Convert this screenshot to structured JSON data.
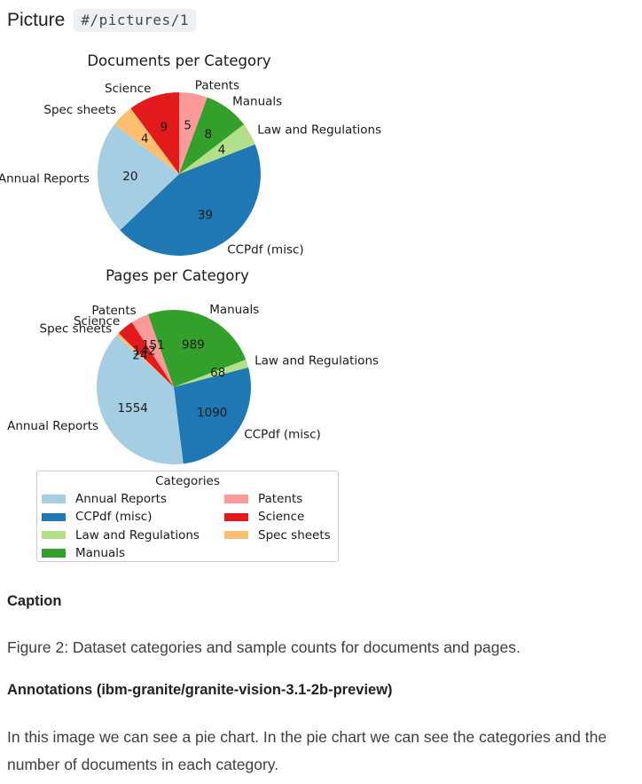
{
  "header": {
    "title": "Picture",
    "path_badge": "#/pictures/1"
  },
  "category_colors": {
    "Annual Reports": "#a6cee3",
    "CCPdf (misc)": "#1f78b4",
    "Law and Regulations": "#b2df8a",
    "Manuals": "#33a02c",
    "Patents": "#fb9a99",
    "Science": "#e31a1c",
    "Spec sheets": "#fdbf6f"
  },
  "chart_data": [
    {
      "type": "pie",
      "title": "Documents per Category",
      "start_angle_deg": 90,
      "direction": "clockwise",
      "legend_position": "below",
      "slices": [
        {
          "label": "Patents",
          "value": 5
        },
        {
          "label": "Manuals",
          "value": 8
        },
        {
          "label": "Law and Regulations",
          "value": 4
        },
        {
          "label": "CCPdf (misc)",
          "value": 39
        },
        {
          "label": "Annual Reports",
          "value": 20
        },
        {
          "label": "Spec sheets",
          "value": 4
        },
        {
          "label": "Science",
          "value": 9
        }
      ]
    },
    {
      "type": "pie",
      "title": "Pages per Category",
      "start_angle_deg": 123,
      "direction": "clockwise",
      "legend_position": "below",
      "slices": [
        {
          "label": "Patents",
          "value": 151
        },
        {
          "label": "Manuals",
          "value": 989
        },
        {
          "label": "Law and Regulations",
          "value": 68
        },
        {
          "label": "CCPdf (misc)",
          "value": 1090
        },
        {
          "label": "Annual Reports",
          "value": 1554
        },
        {
          "label": "Spec sheets",
          "value": 24
        },
        {
          "label": "Science",
          "value": 142
        }
      ]
    }
  ],
  "legend": {
    "title": "Categories",
    "items": [
      "Annual Reports",
      "CCPdf (misc)",
      "Law and Regulations",
      "Manuals",
      "Patents",
      "Science",
      "Spec sheets"
    ]
  },
  "caption": {
    "heading": "Caption",
    "text": "Figure 2: Dataset categories and sample counts for documents and pages."
  },
  "annotations": {
    "heading": "Annotations (ibm-granite/granite-vision-3.1-2b-preview)",
    "text": "In this image we can see a pie chart. In the pie chart we can see the categories and the number of documents in each category."
  }
}
